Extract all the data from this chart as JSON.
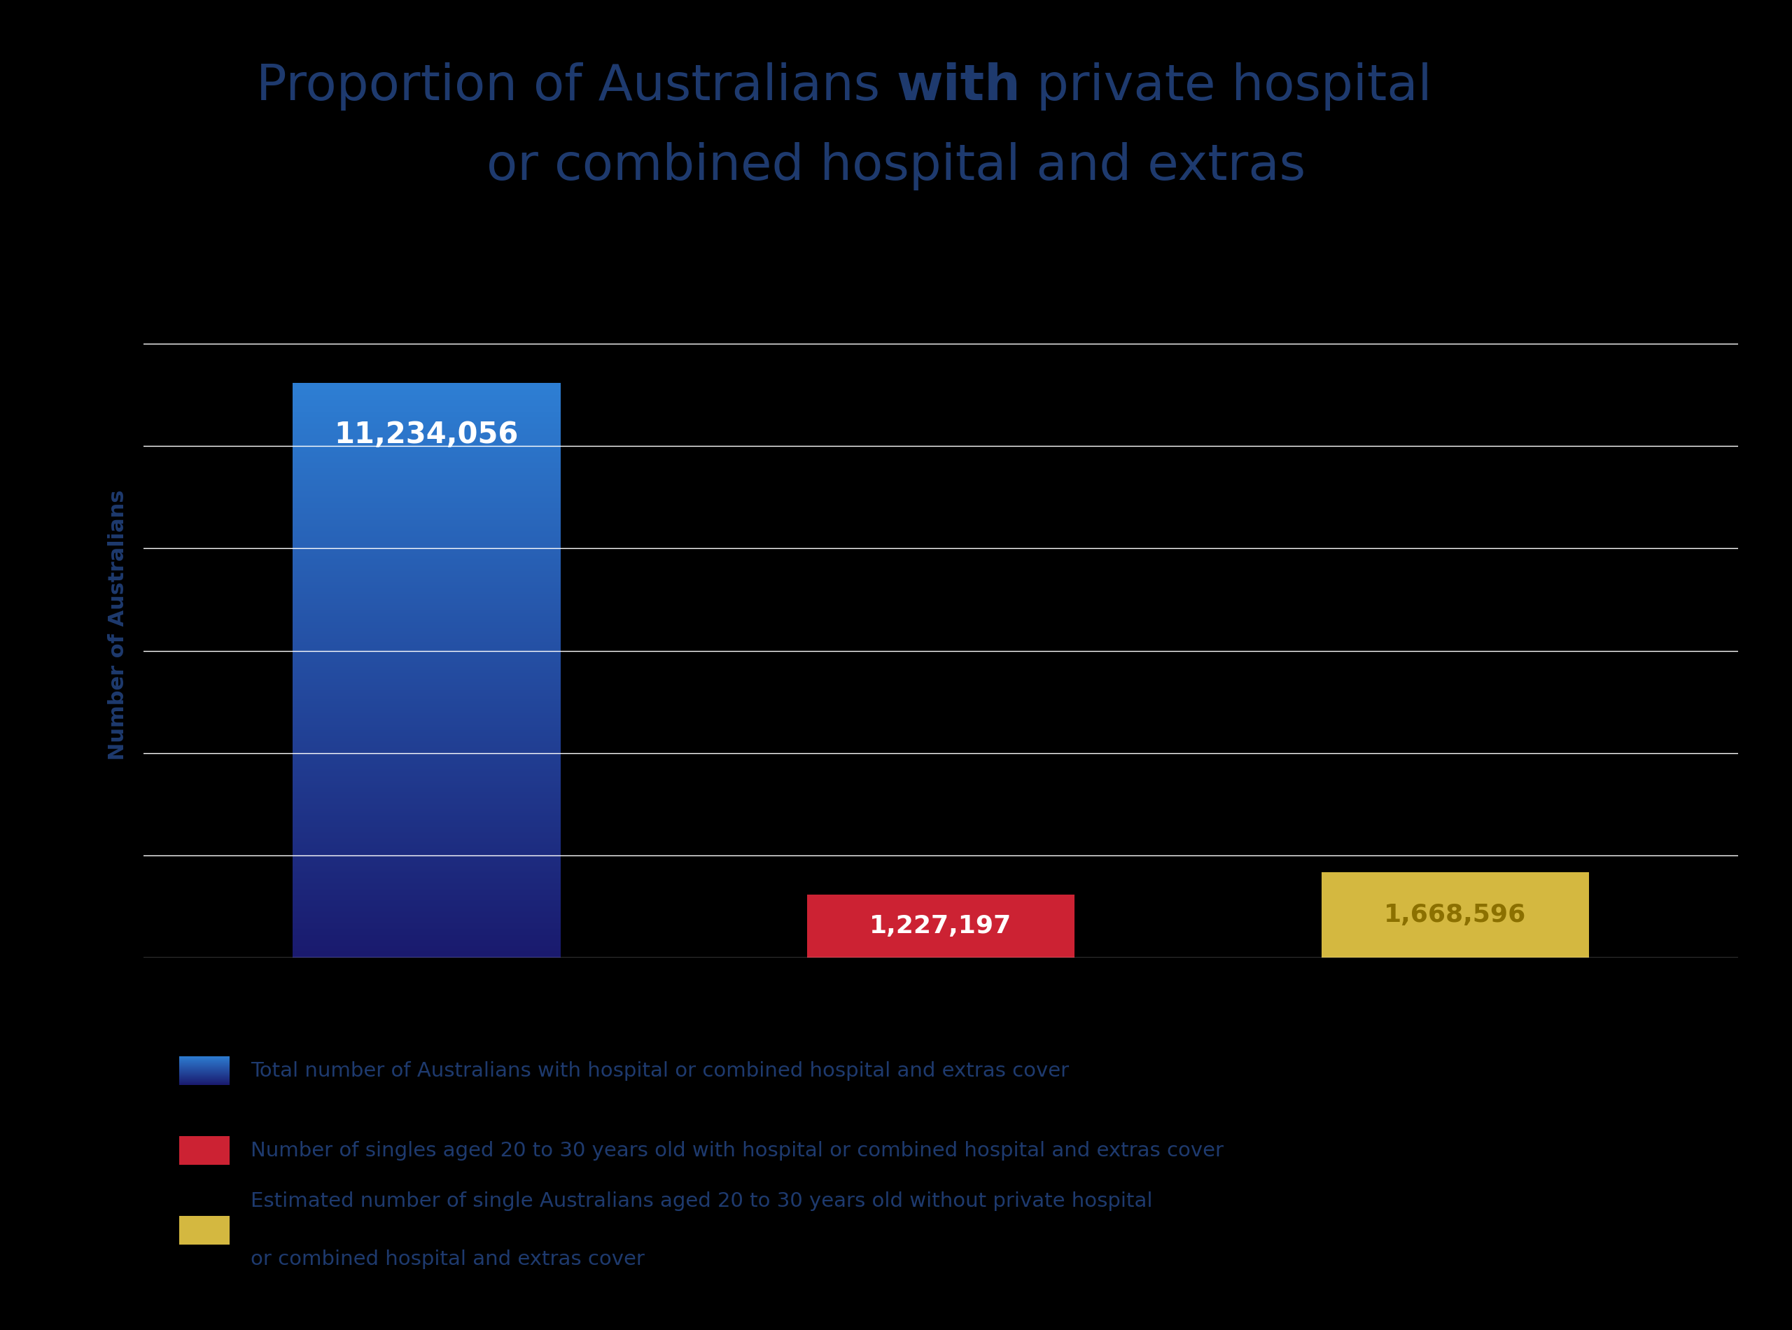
{
  "title_part1": "Proportion of Australians ",
  "title_bold": "with",
  "title_part2": " private hospital",
  "title_line2": "or combined hospital and extras",
  "values": [
    11234056,
    1227197,
    1668596
  ],
  "bar_color_top": "#2E7FD4",
  "bar_color_bottom": "#1A1A6E",
  "bar_color_2": "#CC2233",
  "bar_color_3": "#D4B840",
  "bar_labels": [
    "11,234,056",
    "1,227,197",
    "1,668,596"
  ],
  "bar_label_color_1": "#FFFFFF",
  "bar_label_color_2": "#FFFFFF",
  "bar_label_color_3": "#8B7000",
  "ylabel": "Number of Australians",
  "background_color": "#000000",
  "title_color": "#1E3A6E",
  "ylabel_color": "#1E3A6E",
  "gridline_color": "#FFFFFF",
  "legend_label_1": "Total number of Australians with hospital or combined hospital and extras cover",
  "legend_label_2": "Number of singles aged 20 to 30 years old with hospital or combined hospital and extras cover",
  "legend_label_3a": "Estimated number of single Australians aged 20 to 30 years old without private hospital",
  "legend_label_3b": "or combined hospital and extras cover",
  "legend_color_1_top": "#2E7FD4",
  "legend_color_1_bot": "#1A1A6E",
  "legend_color_2": "#CC2233",
  "legend_color_3": "#D4B840",
  "ylim_max": 13000000,
  "ytick_count": 7,
  "title_fontsize": 52,
  "ylabel_fontsize": 22,
  "bar_label_fontsize_1": 30,
  "bar_label_fontsize_23": 26,
  "legend_fontsize": 21
}
